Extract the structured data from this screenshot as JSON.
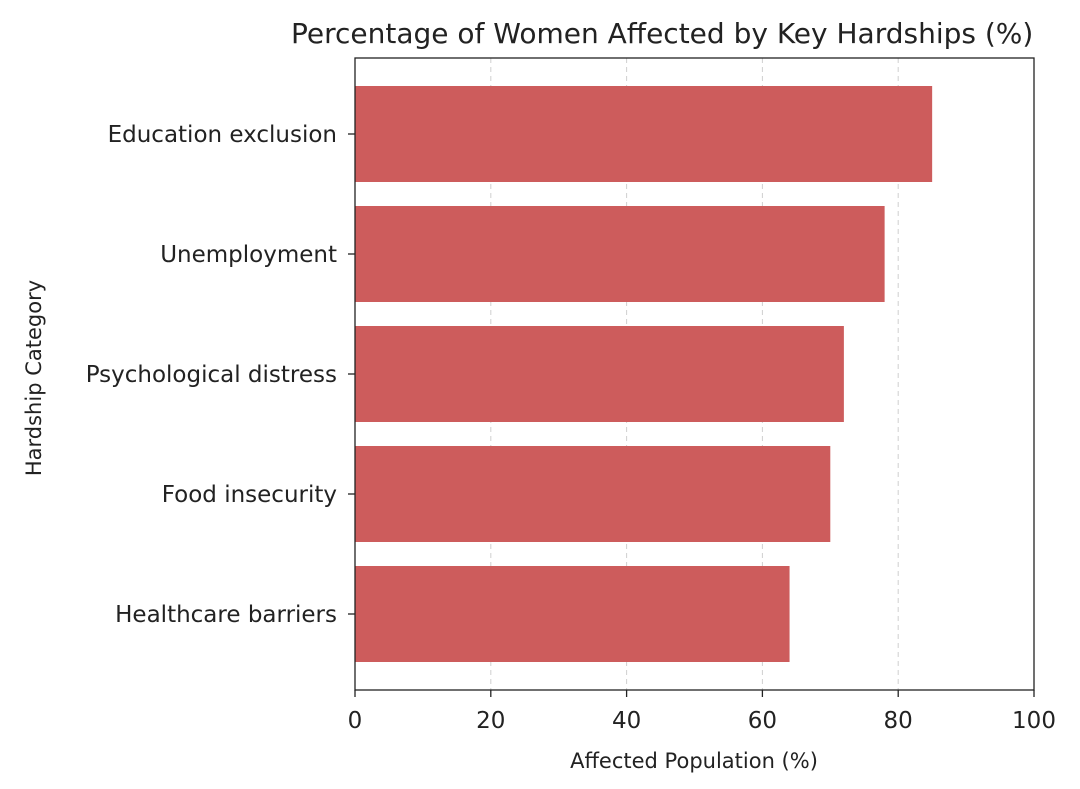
{
  "chart_data": {
    "type": "bar",
    "orientation": "horizontal",
    "title": "Percentage of Women Affected by Key Hardships (%)",
    "xlabel": "Affected Population (%)",
    "ylabel": "Hardship Category",
    "categories": [
      "Education exclusion",
      "Unemployment",
      "Psychological distress",
      "Food insecurity",
      "Healthcare barriers"
    ],
    "values": [
      85,
      78,
      72,
      70,
      64
    ],
    "xlim": [
      0,
      100
    ],
    "xticks": [
      0,
      20,
      40,
      60,
      80,
      100
    ],
    "xtick_labels": [
      "0",
      "20",
      "40",
      "60",
      "80",
      "100"
    ],
    "grid": "x-dashed",
    "bar_color": "#cd5c5c"
  }
}
